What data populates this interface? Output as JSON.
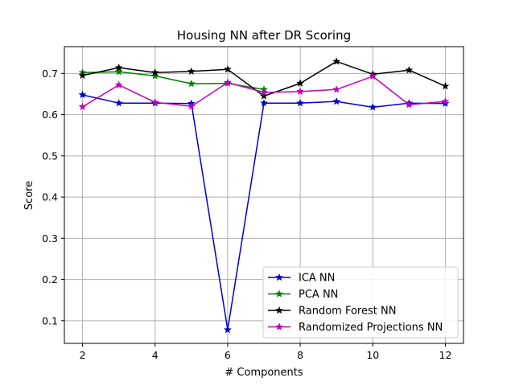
{
  "chart_data": {
    "type": "line",
    "title": "Housing NN after DR Scoring",
    "xlabel": "# Components",
    "ylabel": "Score",
    "x": [
      2,
      3,
      4,
      5,
      6,
      7,
      8,
      9,
      10,
      11,
      12
    ],
    "xlim": [
      1.5,
      12.5
    ],
    "ylim": [
      0.045,
      0.765
    ],
    "xticks": [
      2,
      4,
      6,
      8,
      10,
      12
    ],
    "yticks": [
      0.1,
      0.2,
      0.3,
      0.4,
      0.5,
      0.6,
      0.7
    ],
    "grid": true,
    "legend_position": "lower-right",
    "marker": "star",
    "series": [
      {
        "name": "ICA NN",
        "color": "#0000cc",
        "values": [
          0.648,
          0.628,
          0.628,
          0.627,
          0.078,
          0.628,
          0.628,
          0.632,
          0.618,
          0.628,
          0.627
        ]
      },
      {
        "name": "PCA NN",
        "color": "#008000",
        "values": [
          0.702,
          0.704,
          0.694,
          0.675,
          0.676,
          0.661,
          null,
          null,
          null,
          null,
          null
        ]
      },
      {
        "name": "Random Forest NN",
        "color": "#000000",
        "values": [
          0.695,
          0.714,
          0.702,
          0.705,
          0.71,
          0.645,
          0.676,
          0.729,
          0.698,
          0.708,
          0.669
        ]
      },
      {
        "name": "Randomized Projections NN",
        "color": "#bf00bf",
        "values": [
          0.619,
          0.672,
          0.63,
          0.62,
          0.678,
          0.654,
          0.656,
          0.661,
          0.693,
          0.624,
          0.632
        ]
      }
    ]
  }
}
